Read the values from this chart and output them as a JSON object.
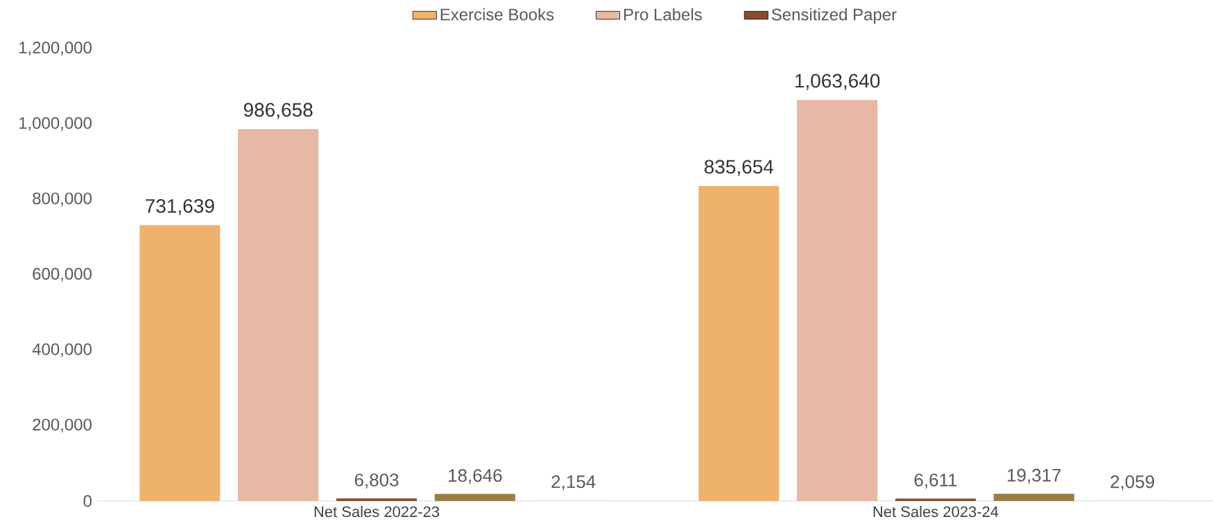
{
  "chart_data": {
    "type": "bar",
    "categories": [
      "Net Sales 2022-23",
      "Net Sales 2023-24"
    ],
    "series": [
      {
        "name": "Exercise Books",
        "color": "#efb26c",
        "values": [
          731639,
          835654
        ],
        "value_labels": [
          "731,639",
          "835,654"
        ]
      },
      {
        "name": "Pro Labels",
        "color": "#e7b8a3",
        "values": [
          986658,
          1063640
        ],
        "value_labels": [
          "986,658",
          "1,063,640"
        ]
      },
      {
        "name": "Sensitized Paper",
        "color": "#8a4a30",
        "values": [
          6803,
          6611
        ],
        "value_labels": [
          "6,803",
          "6,611"
        ]
      },
      {
        "color": "#9a7f45",
        "values": [
          18646,
          19317
        ],
        "value_labels": [
          "18,646",
          "19,317"
        ]
      },
      {
        "color": "#e4e2da",
        "values": [
          2154,
          2059
        ],
        "value_labels": [
          "2,154",
          "2,059"
        ]
      }
    ],
    "ylim": [
      0,
      1200000
    ],
    "yticks": [
      {
        "value": 0,
        "label": "0"
      },
      {
        "value": 200000,
        "label": "200,000"
      },
      {
        "value": 400000,
        "label": "400,000"
      },
      {
        "value": 600000,
        "label": "600,000"
      },
      {
        "value": 800000,
        "label": "800,000"
      },
      {
        "value": 1000000,
        "label": "1,000,000"
      },
      {
        "value": 1200000,
        "label": "1,200,000"
      }
    ],
    "legend": "top",
    "grid": false
  }
}
